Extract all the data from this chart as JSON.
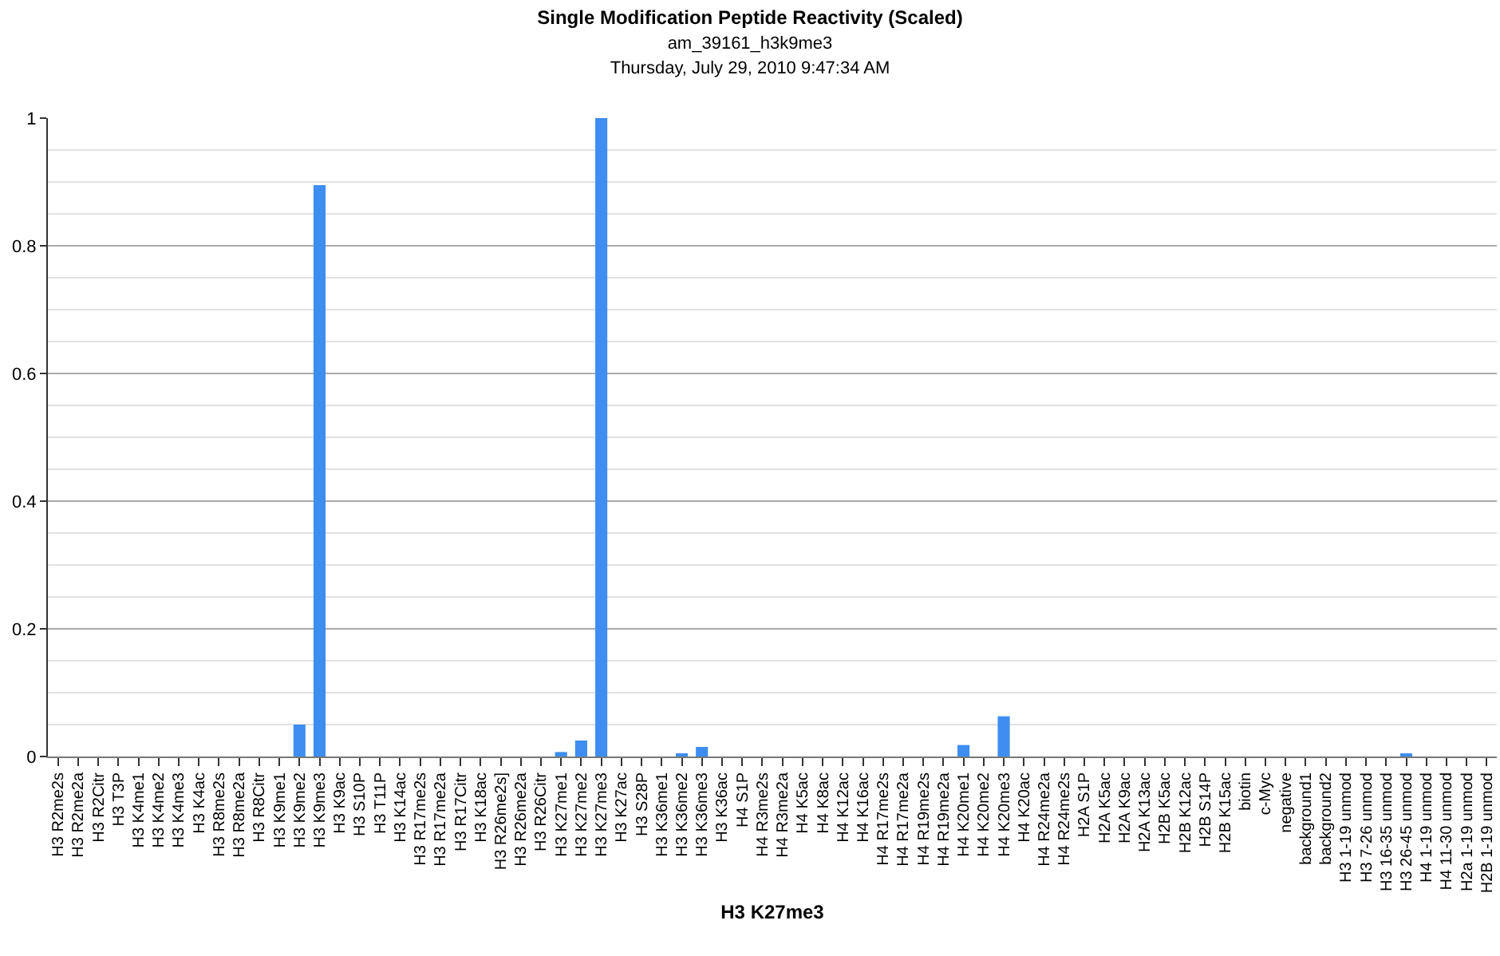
{
  "chart_data": {
    "type": "bar",
    "title": "Single Modification Peptide Reactivity (Scaled)",
    "subtitle": "am_39161_h3k9me3\nThursday, July 29, 2010 9:47:34 AM",
    "xlabel": "H3 K27me3",
    "categories": [
      "H3 R2me2s",
      "H3 R2me2a",
      "H3 R2Citr",
      "H3 T3P",
      "H3 K4me1",
      "H3 K4me2",
      "H3 K4me3",
      "H3 K4ac",
      "H3 R8me2s",
      "H3 R8me2a",
      "H3 R8Citr",
      "H3 K9me1",
      "H3 K9me2",
      "H3 K9me3",
      "H3 K9ac",
      "H3 S10P",
      "H3 T11P",
      "H3 K14ac",
      "H3 R17me2s",
      "H3 R17me2a",
      "H3 R17Citr",
      "H3 K18ac",
      "H3 R26me2s]",
      "H3 R26me2a",
      "H3 R26Citr",
      "H3 K27me1",
      "H3 K27me2",
      "H3 K27me3",
      "H3 K27ac",
      "H3 S28P",
      "H3 K36me1",
      "H3 K36me2",
      "H3 K36me3",
      "H3 K36ac",
      "H4 S1P",
      "H4 R3me2s",
      "H4 R3me2a",
      "H4 K5ac",
      "H4 K8ac",
      "H4 K12ac",
      "H4 K16ac",
      "H4 R17me2s",
      "H4 R17me2a",
      "H4 R19me2s",
      "H4 R19me2a",
      "H4 K20me1",
      "H4 K20me2",
      "H4 K20me3",
      "H4 K20ac",
      "H4 R24me2a",
      "H4 R24me2s",
      "H2A S1P",
      "H2A K5ac",
      "H2A K9ac",
      "H2A K13ac",
      "H2B K5ac",
      "H2B K12ac",
      "H2B S14P",
      "H2B K15ac",
      "biotin",
      "c-Myc",
      "negative",
      "background1",
      "background2",
      "H3 1-19 unmod",
      "H3 7-26 unmod",
      "H3 16-35 unmod",
      "H3 26-45 unmod",
      "H4 1-19 unmod",
      "H4 11-30 unmod",
      "H2a 1-19 unmod",
      "H2B 1-19 unmod"
    ],
    "values": [
      0,
      0,
      0,
      0,
      0,
      0,
      0,
      0,
      0,
      0,
      0,
      0,
      0.05,
      0.895,
      0,
      0,
      0,
      0,
      0,
      0,
      0,
      0,
      0,
      0,
      0,
      0.007,
      0.025,
      1.0,
      0,
      0,
      0,
      0.003,
      0.015,
      0,
      0,
      0,
      0,
      0,
      0,
      0,
      0,
      0,
      0,
      0,
      0,
      0.018,
      0,
      0.063,
      0,
      0,
      0,
      0,
      0,
      0,
      0,
      0,
      0,
      0,
      0,
      0,
      0,
      0,
      0,
      0,
      0,
      0,
      0,
      0.003,
      0,
      0,
      0,
      0
    ],
    "color": "#3d8ef0",
    "ylim": [
      0,
      1
    ],
    "yticks": [
      0,
      0.2,
      0.4,
      0.6,
      0.8,
      1
    ],
    "grid": "y"
  }
}
